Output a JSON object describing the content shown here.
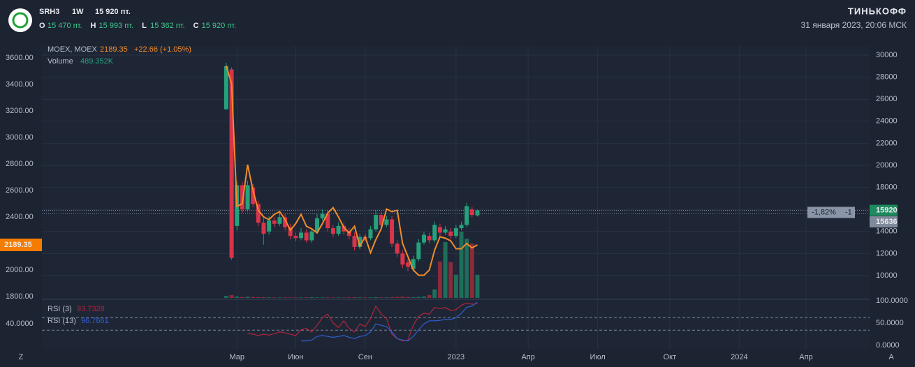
{
  "header": {
    "ticker": "SRH3",
    "interval": "1W",
    "price": "15 920 пт.",
    "ohlc": [
      {
        "key": "O",
        "value": "15 470 пт."
      },
      {
        "key": "H",
        "value": "15 993 пт."
      },
      {
        "key": "L",
        "value": "15 362 пт."
      },
      {
        "key": "C",
        "value": "15 920 пт."
      }
    ],
    "brand": "ТИНЬКОФФ",
    "datetime": "31 января 2023, 20:06 МСК"
  },
  "chart_data": {
    "type": "candlestick",
    "legend": {
      "moex": "MOEX, MOEX",
      "moex_value": "2189.35",
      "moex_change": "+22.66 (+1.05%)",
      "volume": "Volume",
      "volume_value": "489.352K"
    },
    "xlim": [
      -34.5,
      120.4
    ],
    "xticks": [
      {
        "value": 2,
        "label": "Мар"
      },
      {
        "value": 13,
        "label": "Июн"
      },
      {
        "value": 26,
        "label": "Сен"
      },
      {
        "value": 43,
        "label": "2023"
      },
      {
        "value": 56.5,
        "label": "Апр"
      },
      {
        "value": 69.5,
        "label": "Июл"
      },
      {
        "value": 83,
        "label": "Окт"
      },
      {
        "value": 96,
        "label": "2024"
      },
      {
        "value": 108.5,
        "label": "Апр"
      }
    ],
    "ylim": [
      7975,
      30000
    ],
    "yticks": [
      10000,
      12000,
      14000,
      16000,
      18000,
      20000,
      22000,
      24000,
      26000,
      28000,
      30000
    ],
    "y2lim": [
      1789,
      3621
    ],
    "y2ticks": [
      {
        "value": 1800,
        "label": "1800.00"
      },
      {
        "value": 2000,
        "label": "2000.00"
      },
      {
        "value": 2200,
        "label": "2200.00"
      },
      {
        "value": 2400,
        "label": "2400.00"
      },
      {
        "value": 2600,
        "label": "2600.00"
      },
      {
        "value": 2800,
        "label": "2800.00"
      },
      {
        "value": 3000,
        "label": "3000.00"
      },
      {
        "value": 3200,
        "label": "3200.00"
      },
      {
        "value": 3400,
        "label": "3400.00"
      },
      {
        "value": 3600,
        "label": "3600.00"
      }
    ],
    "up_color": "#26a17b",
    "down_color": "#d8344a",
    "open": [
      25100,
      28700,
      14500,
      18200,
      16000,
      18000,
      16500,
      14800,
      14000,
      15000,
      14700,
      15300,
      14400,
      13600,
      13400,
      13900,
      13200,
      14000,
      15200,
      15600,
      14300,
      13800,
      14500,
      14000,
      13600,
      12600,
      13500,
      13400,
      14200,
      15500,
      14600,
      15100,
      12900,
      12000,
      11200,
      10600,
      11500,
      13000,
      13600,
      13200,
      14400,
      13900,
      14000,
      13600,
      14300,
      14600,
      16000,
      15470
    ],
    "high": [
      29300,
      28900,
      18600,
      18500,
      18600,
      18300,
      16800,
      15200,
      15400,
      15300,
      15700,
      15600,
      14700,
      13900,
      14300,
      14200,
      14300,
      15600,
      16000,
      15900,
      14600,
      14800,
      14800,
      14300,
      13900,
      13800,
      13800,
      14500,
      15900,
      15800,
      15400,
      15400,
      13200,
      12300,
      11500,
      11800,
      13300,
      14000,
      13900,
      14900,
      14700,
      14500,
      14300,
      14600,
      14900,
      16600,
      16200,
      15993
    ],
    "low": [
      25000,
      11400,
      14100,
      15700,
      15800,
      16200,
      14500,
      12800,
      13700,
      14400,
      14500,
      14100,
      13300,
      13100,
      13200,
      13000,
      13000,
      13800,
      15000,
      14000,
      13500,
      13600,
      13700,
      13300,
      12300,
      12400,
      13100,
      13200,
      14000,
      14300,
      14400,
      12600,
      11700,
      10700,
      10400,
      10400,
      11300,
      12800,
      12900,
      13000,
      13600,
      13700,
      13300,
      13400,
      14100,
      14400,
      15300,
      15362
    ],
    "close": [
      29000,
      11600,
      18200,
      16000,
      18200,
      16500,
      14800,
      13800,
      15000,
      14700,
      15300,
      14400,
      13600,
      13400,
      13900,
      13200,
      14000,
      15200,
      15600,
      14300,
      13800,
      14500,
      14000,
      13600,
      12600,
      13500,
      13400,
      14200,
      15500,
      14600,
      15100,
      12900,
      12000,
      11000,
      10800,
      11500,
      13000,
      13700,
      13200,
      14600,
      13900,
      14200,
      13600,
      14300,
      14600,
      16300,
      15500,
      15920
    ],
    "series": [
      {
        "name": "MOEX",
        "color": "#f28c28",
        "axis": "y2",
        "values": [
          3540,
          3405,
          2480,
          2500,
          2795,
          2600,
          2450,
          2400,
          2380,
          2420,
          2440,
          2380,
          2300,
          2350,
          2420,
          2330,
          2310,
          2280,
          2350,
          2430,
          2470,
          2400,
          2320,
          2280,
          2330,
          2180,
          2250,
          2130,
          2230,
          2310,
          2460,
          2440,
          2450,
          2200,
          2100,
          2000,
          1960,
          1960,
          2000,
          2150,
          2250,
          2240,
          2220,
          2160,
          2160,
          2200,
          2166.69,
          2189.35
        ]
      }
    ],
    "volume": [
      40,
      60,
      30,
      20,
      25,
      20,
      15,
      15,
      12,
      10,
      10,
      12,
      10,
      10,
      10,
      12,
      15,
      10,
      10,
      12,
      10,
      10,
      10,
      12,
      15,
      12,
      10,
      10,
      15,
      12,
      10,
      15,
      20,
      25,
      20,
      15,
      20,
      30,
      60,
      180,
      770,
      1180,
      760,
      490,
      1400,
      1250,
      1150,
      489.352
    ],
    "price_tags": [
      {
        "value": 15920,
        "color": "#1e8a5e"
      },
      {
        "value": 15636,
        "color": "#7f8a9a"
      }
    ],
    "tag_change": "-1,82%",
    "tag_count": "-1",
    "y2_tag": {
      "value": 2189.35,
      "color": "#f57c00"
    },
    "rsi": {
      "ylim": [
        0,
        100
      ],
      "yticks": [
        {
          "value": 0,
          "label": "0.0000"
        },
        {
          "value": 50,
          "label": "50.0000"
        },
        {
          "value": 100,
          "label": "100.0000"
        }
      ],
      "left_label": "40.0000",
      "levels": [
        62,
        34
      ],
      "series": [
        {
          "name": "RSI (3)",
          "label": "93.7328",
          "color": "#b0253a",
          "values": [
            null,
            null,
            null,
            null,
            27,
            25,
            22,
            25,
            23,
            26,
            30,
            28,
            25,
            22,
            35,
            38,
            30,
            45,
            62,
            70,
            50,
            40,
            55,
            38,
            30,
            48,
            42,
            60,
            88,
            70,
            60,
            25,
            15,
            10,
            12,
            45,
            65,
            72,
            70,
            85,
            82,
            85,
            78,
            80,
            90,
            95,
            92,
            93.7328
          ]
        },
        {
          "name": "RSI (13)",
          "label": "96.7661",
          "color": "#2f5fd0",
          "values": [
            null,
            null,
            null,
            null,
            null,
            null,
            null,
            null,
            null,
            null,
            null,
            null,
            null,
            null,
            10,
            10,
            12,
            20,
            22,
            20,
            18,
            20,
            22,
            18,
            15,
            20,
            22,
            30,
            48,
            45,
            42,
            30,
            15,
            12,
            10,
            20,
            35,
            48,
            55,
            55,
            56,
            58,
            58,
            62,
            72,
            85,
            88,
            96.7661
          ]
        }
      ]
    },
    "corner_left": "Z",
    "corner_right": "A"
  }
}
